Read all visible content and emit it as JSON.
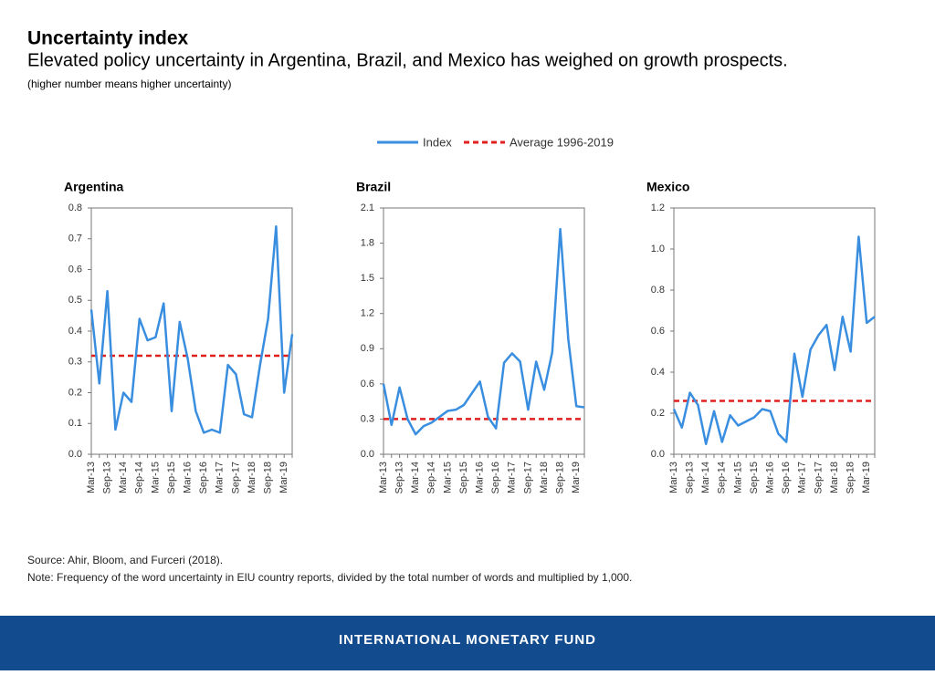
{
  "header": {
    "title": "Uncertainty index",
    "subtitle": "Elevated policy uncertainty in Argentina, Brazil, and Mexico has weighed on growth prospects.",
    "note": "(higher number means higher uncertainty)"
  },
  "legend": [
    {
      "name": "Index",
      "color": "#3a8ee0"
    },
    {
      "name": "Average 1996-2019",
      "color": "#e0201e"
    }
  ],
  "chart_data": [
    {
      "type": "line",
      "title": "Argentina",
      "categories": [
        "Mar-13",
        null,
        "Sep-13",
        null,
        "Mar-14",
        null,
        "Sep-14",
        null,
        "Mar-15",
        null,
        "Sep-15",
        null,
        "Mar-16",
        null,
        "Sep-16",
        null,
        "Mar-17",
        null,
        "Sep-17",
        null,
        "Mar-18",
        null,
        "Sep-18",
        null,
        "Mar-19",
        null
      ],
      "values": [
        0.47,
        0.23,
        0.53,
        0.08,
        0.2,
        0.17,
        0.44,
        0.37,
        0.38,
        0.49,
        0.14,
        0.43,
        0.31,
        0.14,
        0.07,
        0.08,
        0.07,
        0.29,
        0.26,
        0.13,
        0.12,
        0.29,
        0.44,
        0.74,
        0.2,
        0.39
      ],
      "average": 0.32,
      "ylim": [
        0,
        0.8
      ],
      "yticks": [
        {
          "value": 0,
          "label": "0.0"
        },
        0.1,
        0.2,
        0.3,
        0.4,
        0.5,
        0.6,
        0.7,
        0.8
      ]
    },
    {
      "type": "line",
      "title": "Brazil",
      "categories": [
        "Mar-13",
        null,
        "Sep-13",
        null,
        "Mar-14",
        null,
        "Sep-14",
        null,
        "Mar-15",
        null,
        "Sep-15",
        null,
        "Mar-16",
        null,
        "Sep-16",
        null,
        "Mar-17",
        null,
        "Sep-17",
        null,
        "Mar-18",
        null,
        "Sep-18",
        null,
        "Mar-19",
        null
      ],
      "values": [
        0.6,
        0.25,
        0.57,
        0.3,
        0.17,
        0.24,
        0.27,
        0.32,
        0.37,
        0.38,
        0.42,
        0.52,
        0.62,
        0.32,
        0.22,
        0.78,
        0.86,
        0.79,
        0.38,
        0.79,
        0.55,
        0.87,
        1.92,
        0.98,
        0.41,
        0.4
      ],
      "average": 0.3,
      "ylim": [
        0,
        2.1
      ],
      "yticks": [
        {
          "value": 0,
          "label": "0.0"
        },
        0.3,
        0.6,
        0.9,
        1.2,
        1.5,
        1.8,
        2.1
      ]
    },
    {
      "type": "line",
      "title": "Mexico",
      "categories": [
        "Mar-13",
        null,
        "Sep-13",
        null,
        "Mar-14",
        null,
        "Sep-14",
        null,
        "Mar-15",
        null,
        "Sep-15",
        null,
        "Mar-16",
        null,
        "Sep-16",
        null,
        "Mar-17",
        null,
        "Sep-17",
        null,
        "Mar-18",
        null,
        "Sep-18",
        null,
        "Mar-19",
        null
      ],
      "values": [
        0.22,
        0.13,
        0.3,
        0.24,
        0.05,
        0.21,
        0.06,
        0.19,
        0.14,
        0.16,
        0.18,
        0.22,
        0.21,
        0.1,
        0.06,
        0.49,
        0.28,
        0.51,
        0.58,
        0.63,
        0.41,
        0.67,
        0.5,
        1.06,
        0.64,
        0.67
      ],
      "average": 0.26,
      "ylim": [
        0,
        1.2
      ],
      "yticks": [
        {
          "value": 0,
          "label": "0.0"
        },
        0.2,
        0.4,
        0.6,
        0.8,
        {
          "value": 1,
          "label": "1.0"
        },
        1.2
      ]
    }
  ],
  "footer": {
    "source": "Source: Ahir, Bloom, and Furceri (2018).",
    "note": "Note: Frequency of the word uncertainty in EIU country reports, divided by the total number of words and multiplied by 1,000.",
    "brand": "INTERNATIONAL MONETARY FUND"
  }
}
